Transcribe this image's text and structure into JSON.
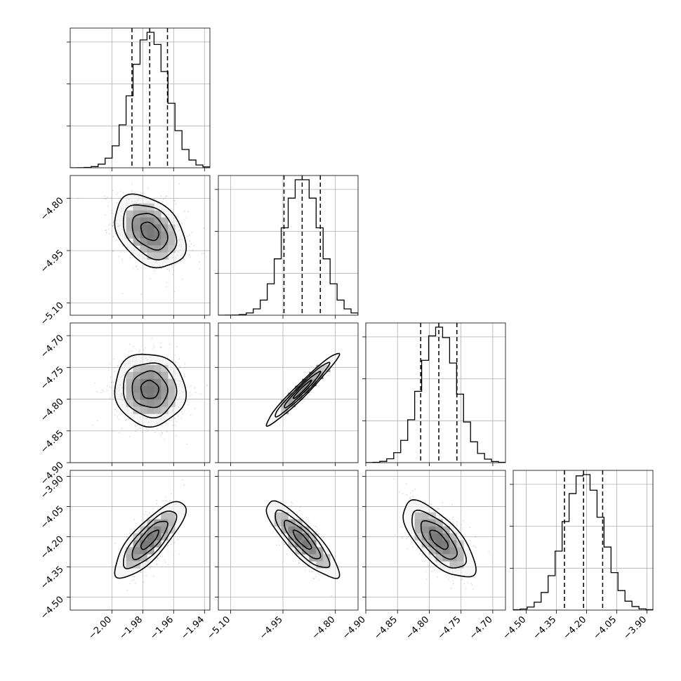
{
  "chart_data": {
    "type": "corner",
    "title": "",
    "parameters": [
      {
        "xticks": [
          "−2.00",
          "−1.98",
          "−1.96",
          "−1.94"
        ],
        "yticks": [],
        "range": [
          -2.027,
          -1.9365
        ],
        "mean": -1.9755,
        "sigma": 0.0115
      },
      {
        "xticks": [
          "−5.10",
          "−4.95",
          "−4.80"
        ],
        "yticks": [
          "−4.80",
          "−4.95",
          "−5.10"
        ],
        "range": [
          -5.135,
          -4.735
        ],
        "mean": -4.895,
        "sigma": 0.052
      },
      {
        "xticks": [
          "−4.90",
          "−4.85",
          "−4.80",
          "−4.75",
          "−4.70"
        ],
        "yticks": [
          "−4.70",
          "−4.75",
          "−4.80",
          "−4.85",
          "−4.90"
        ],
        "range": [
          -4.9,
          -4.68
        ],
        "mean": -4.785,
        "sigma": 0.0285
      },
      {
        "xticks": [
          "−4.50",
          "−4.35",
          "−4.20",
          "−4.05",
          "−3.90"
        ],
        "yticks": [
          "−3.90",
          "−4.05",
          "−4.20",
          "−4.35",
          "−4.50"
        ],
        "range": [
          -4.565,
          -3.87
        ],
        "mean": -4.215,
        "sigma": 0.095
      }
    ],
    "marginal_quantiles": [
      [
        -1.987,
        -1.9755,
        -1.964
      ],
      [
        -4.947,
        -4.895,
        -4.843
      ],
      [
        -4.8135,
        -4.785,
        -4.7565
      ],
      [
        -4.31,
        -4.215,
        -4.12
      ]
    ],
    "correlations": [
      {
        "pair": [
          1,
          0
        ],
        "rho": -0.35
      },
      {
        "pair": [
          2,
          0
        ],
        "rho": -0.05
      },
      {
        "pair": [
          2,
          1
        ],
        "rho": 0.97
      },
      {
        "pair": [
          3,
          0
        ],
        "rho": 0.8
      },
      {
        "pair": [
          3,
          1
        ],
        "rho": -0.85
      },
      {
        "pair": [
          3,
          2
        ],
        "rho": -0.7
      }
    ],
    "grid": true,
    "colors": {
      "line": "#000000",
      "grid": "#b0b0b0",
      "points": "#808080"
    }
  }
}
